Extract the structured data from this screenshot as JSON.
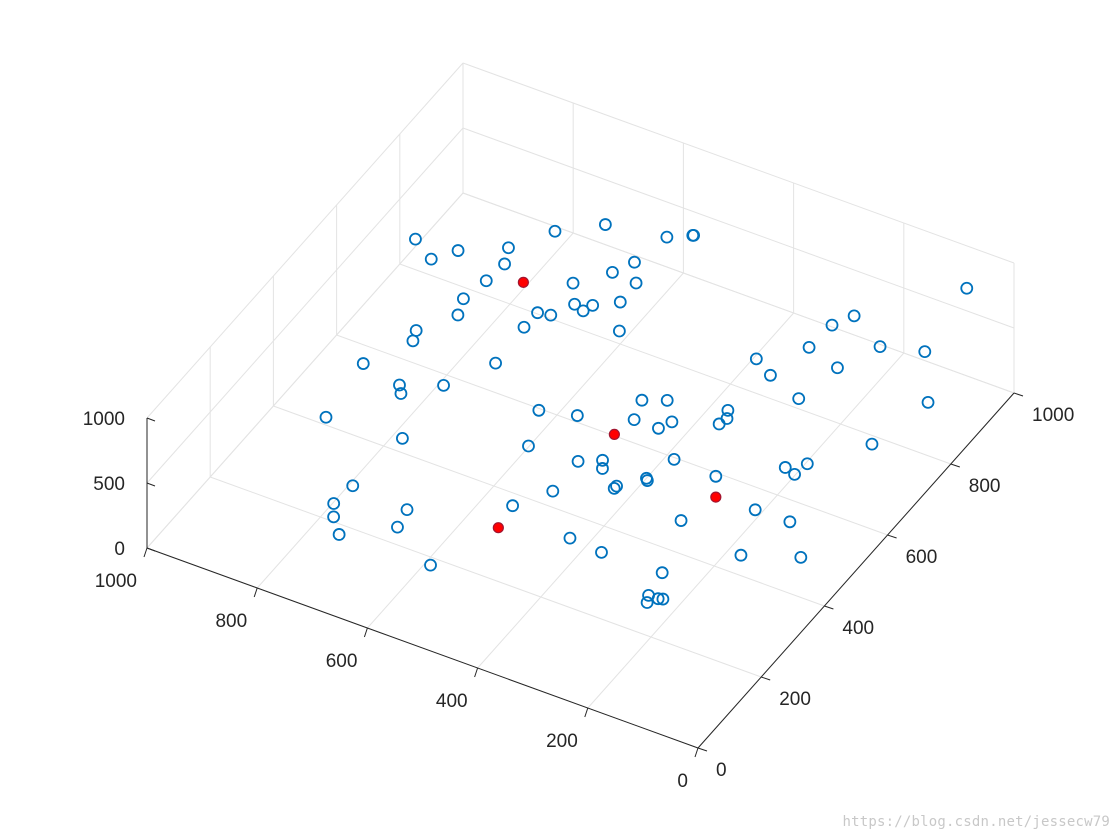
{
  "chart_data": {
    "type": "scatter",
    "projection": "3d",
    "grid": true,
    "xlim": [
      0,
      1000
    ],
    "ylim": [
      0,
      1000
    ],
    "zlim": [
      0,
      1000
    ],
    "x_ticks": [
      0,
      200,
      400,
      600,
      800,
      1000
    ],
    "y_ticks": [
      0,
      200,
      400,
      600,
      800,
      1000
    ],
    "z_ticks": [
      0,
      500,
      1000
    ],
    "x_tick_labels": [
      "0",
      "200",
      "400",
      "600",
      "800",
      "1000"
    ],
    "y_tick_labels": [
      "0",
      "200",
      "400",
      "600",
      "800",
      "1000"
    ],
    "z_tick_labels": [
      "0",
      "500",
      "1000"
    ],
    "series": [
      {
        "marker": "open-circle",
        "color": "#0072BD",
        "points": [
          [
            70,
            850,
            230
          ],
          [
            30,
            770,
            900
          ],
          [
            60,
            430,
            200
          ],
          [
            140,
            590,
            360
          ],
          [
            230,
            290,
            0
          ],
          [
            100,
            480,
            640
          ],
          [
            170,
            140,
            530
          ],
          [
            80,
            990,
            710
          ],
          [
            190,
            650,
            620
          ],
          [
            250,
            860,
            520
          ],
          [
            330,
            270,
            260
          ],
          [
            300,
            590,
            420
          ],
          [
            230,
            240,
            110
          ],
          [
            260,
            340,
            20
          ],
          [
            220,
            440,
            550
          ],
          [
            460,
            500,
            140
          ],
          [
            270,
            700,
            540
          ],
          [
            240,
            770,
            610
          ],
          [
            250,
            930,
            400
          ],
          [
            370,
            380,
            390
          ],
          [
            290,
            430,
            600
          ],
          [
            360,
            370,
            450
          ],
          [
            200,
            790,
            460
          ],
          [
            300,
            360,
            630
          ],
          [
            330,
            760,
            410
          ],
          [
            380,
            580,
            340
          ],
          [
            350,
            450,
            290
          ],
          [
            220,
            330,
            510
          ],
          [
            210,
            240,
            170
          ],
          [
            160,
            460,
            330
          ],
          [
            590,
            780,
            170
          ],
          [
            120,
            500,
            190
          ],
          [
            140,
            380,
            230
          ],
          [
            370,
            240,
            390
          ],
          [
            400,
            600,
            420
          ],
          [
            470,
            440,
            280
          ],
          [
            470,
            360,
            270
          ],
          [
            180,
            590,
            270
          ],
          [
            420,
            430,
            330
          ],
          [
            520,
            320,
            190
          ],
          [
            560,
            960,
            460
          ],
          [
            620,
            880,
            380
          ],
          [
            660,
            880,
            240
          ],
          [
            640,
            870,
            70
          ],
          [
            640,
            920,
            80
          ],
          [
            630,
            1000,
            230
          ],
          [
            690,
            910,
            480
          ],
          [
            650,
            770,
            260
          ],
          [
            650,
            800,
            220
          ],
          [
            570,
            980,
            390
          ],
          [
            750,
            800,
            10
          ],
          [
            780,
            690,
            510
          ],
          [
            810,
            670,
            380
          ],
          [
            820,
            670,
            240
          ],
          [
            770,
            890,
            360
          ],
          [
            700,
            830,
            70
          ],
          [
            720,
            860,
            120
          ],
          [
            840,
            520,
            80
          ],
          [
            900,
            510,
            180
          ],
          [
            850,
            580,
            240
          ],
          [
            920,
            710,
            560
          ],
          [
            890,
            660,
            40
          ],
          [
            900,
            810,
            230
          ],
          [
            820,
            830,
            320
          ],
          [
            610,
            560,
            130
          ],
          [
            700,
            580,
            300
          ],
          [
            760,
            520,
            200
          ],
          [
            700,
            670,
            330
          ],
          [
            780,
            420,
            380
          ],
          [
            640,
            650,
            570
          ],
          [
            770,
            250,
            150
          ],
          [
            830,
            270,
            530
          ],
          [
            720,
            320,
            400
          ],
          [
            730,
            120,
            430
          ],
          [
            660,
            230,
            190
          ],
          [
            560,
            130,
            190
          ],
          [
            690,
            50,
            580
          ],
          [
            680,
            50,
            460
          ],
          [
            620,
            130,
            390
          ],
          [
            400,
            520,
            640
          ],
          [
            500,
            490,
            450
          ],
          [
            460,
            600,
            180
          ],
          [
            370,
            520,
            470
          ],
          [
            330,
            670,
            260
          ],
          [
            560,
            440,
            260
          ],
          [
            850,
            870,
            40
          ],
          [
            920,
            760,
            270
          ],
          [
            180,
            890,
            380
          ],
          [
            280,
            580,
            520
          ],
          [
            80,
            690,
            330
          ]
        ]
      },
      {
        "marker": "filled-circle",
        "color": "#FF0000",
        "edge_color": "#A2142F",
        "points": [
          [
            220,
            440,
            390
          ],
          [
            450,
            520,
            300
          ],
          [
            770,
            790,
            240
          ],
          [
            500,
            240,
            270
          ]
        ]
      }
    ]
  },
  "watermark": "https://blog.csdn.net/jessecw79"
}
